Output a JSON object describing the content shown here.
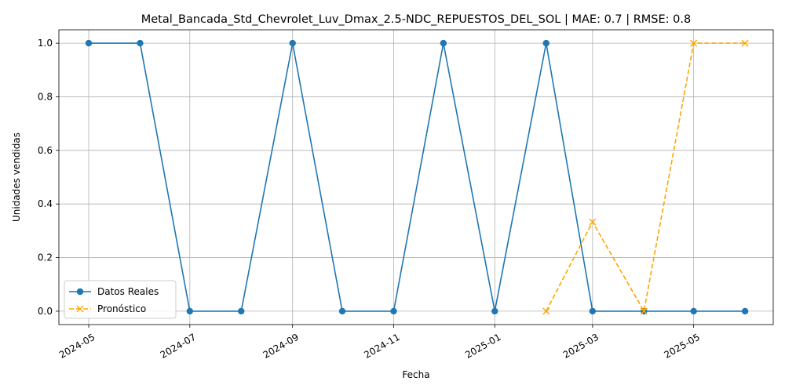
{
  "chart_data": {
    "type": "line",
    "title": "Metal_Bancada_Std_Chevrolet_Luv_Dmax_2.5-NDC_REPUESTOS_DEL_SOL | MAE: 0.7 | RMSE: 0.8",
    "xlabel": "Fecha",
    "ylabel": "Unidades vendidas",
    "ylim": [
      -0.05,
      1.05
    ],
    "xlim": [
      "2024-04-13",
      "2025-06-18"
    ],
    "grid": true,
    "legend_position": "lower-left",
    "x_ticks": [
      "2024-05",
      "2024-07",
      "2024-09",
      "2024-11",
      "2025-01",
      "2025-03",
      "2025-05"
    ],
    "y_ticks": [
      "0.0",
      "0.2",
      "0.4",
      "0.6",
      "0.8",
      "1.0"
    ],
    "series": [
      {
        "name": "Datos Reales",
        "color": "#1f77b4",
        "marker": "circle",
        "linestyle": "solid",
        "x": [
          "2024-05-01",
          "2024-06-01",
          "2024-07-01",
          "2024-08-01",
          "2024-09-01",
          "2024-10-01",
          "2024-11-01",
          "2024-12-01",
          "2025-01-01",
          "2025-02-01",
          "2025-03-01",
          "2025-04-01",
          "2025-05-01",
          "2025-06-01"
        ],
        "values": [
          1,
          1,
          0,
          0,
          1,
          0,
          0,
          1,
          0,
          1,
          0,
          0,
          0,
          0
        ]
      },
      {
        "name": "Pronóstico",
        "color": "#ffa500",
        "marker": "x",
        "linestyle": "dashed",
        "x": [
          "2025-02-01",
          "2025-03-01",
          "2025-04-01",
          "2025-05-01",
          "2025-06-01"
        ],
        "values": [
          0,
          0.333,
          0,
          1,
          1
        ]
      }
    ]
  }
}
